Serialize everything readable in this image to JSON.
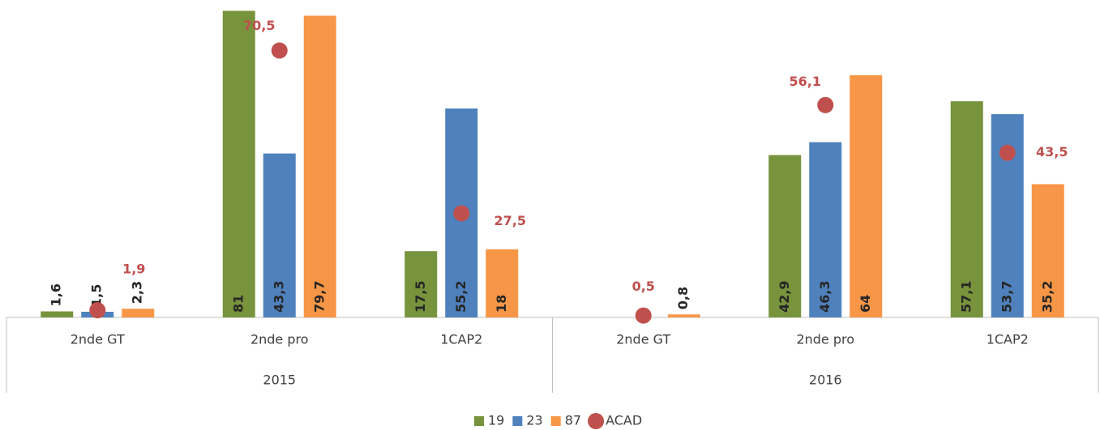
{
  "chart_data": {
    "type": "bar",
    "categories": [
      "2nde GT",
      "2nde pro",
      "1CAP2",
      "2nde GT",
      "2nde pro",
      "1CAP2"
    ],
    "category_groups": [
      "2015",
      "2016"
    ],
    "ylim": [
      0,
      83
    ],
    "series": [
      {
        "name": "19",
        "color": "#77933c",
        "values": [
          1.6,
          81,
          17.5,
          null,
          42.9,
          57.1
        ],
        "value_labels": [
          "1,6",
          "81",
          "17,5",
          null,
          "42,9",
          "57,1"
        ]
      },
      {
        "name": "23",
        "color": "#4f81bd",
        "values": [
          1.5,
          43.3,
          55.2,
          null,
          46.3,
          53.7
        ],
        "value_labels": [
          "1,5",
          "43,3",
          "55,2",
          null,
          "46,3",
          "53,7"
        ]
      },
      {
        "name": "87",
        "color": "#f79646",
        "values": [
          2.3,
          79.7,
          18,
          0.8,
          64,
          35.2
        ],
        "value_labels": [
          "2,3",
          "79,7",
          "18",
          "0,8",
          "64",
          "35,2"
        ]
      },
      {
        "name": "ACAD",
        "type": "scatter",
        "color": "#c0504d",
        "values": [
          1.9,
          70.5,
          27.5,
          0.5,
          56.1,
          43.5
        ],
        "value_labels": [
          "1,9",
          "70,5",
          "27,5",
          "0,5",
          "56,1",
          "43,5"
        ]
      }
    ]
  }
}
